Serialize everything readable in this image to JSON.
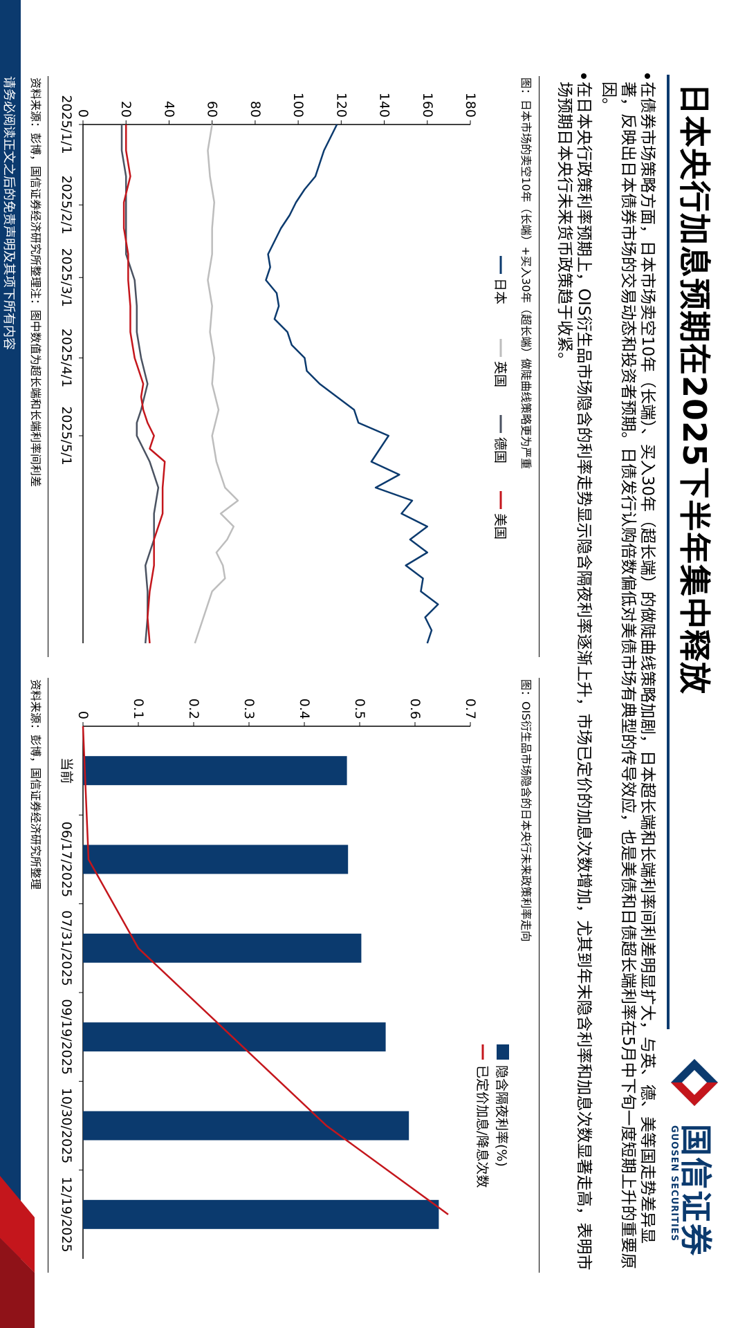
{
  "title": "日本央行加息预期在2025下半年集中释放",
  "bullets": [
    "在债券市场策略方面，日本市场卖空10年（长端）、买入30年（超长端）的做陡曲线策略加剧，日本超长端和长端利率间利差明显扩大，与英、德、美等国走势差异显著，反映出日本债券市场的交易动态和投资者预期。日债发行认购倍数偏低对美债市场有典型的传导效应，也是美债和日债超长端利率在5月中下旬一度短期上升的重要原因。",
    "在日本央行政策利率预期上，OIS衍生品市场隐含的利率走势显示隐含隔夜利率逐渐上升，市场已定价的加息次数增加，尤其到年末隐含利率和加息次数显著走高，表明市场预期日本央行未来货币政策趋于收紧。"
  ],
  "logo": {
    "cn": "国信证券",
    "en": "GUOSEN SECURITIES"
  },
  "disclaimer": "请务必阅读正文之后的免责声明及其项下所有内容",
  "colors": {
    "navy": "#0b3a6e",
    "red": "#c4161c",
    "grey": "#bdbdbd",
    "slate": "#4a5261"
  },
  "chart_data": [
    {
      "type": "line",
      "caption": "图：日本市场的卖空10年（长端）+买入30年（超长端）做陡曲线策略更为严重",
      "source": "资料来源：彭博，国信证券经济研究所整理注：图中数值为超长端和长端利率间利差",
      "x_ticks": [
        "2025/1/1",
        "2025/2/1",
        "2025/3/1",
        "2025/4/1",
        "2025/5/1"
      ],
      "y_ticks": [
        "0",
        "20",
        "40",
        "60",
        "80",
        "100",
        "120",
        "140",
        "160",
        "180"
      ],
      "ylim": [
        0,
        180
      ],
      "legend_position": "top",
      "series": [
        {
          "name": "日本",
          "color": "#0b3a6e",
          "values": [
            [
              0,
              118
            ],
            [
              5,
              115
            ],
            [
              10,
              112
            ],
            [
              15,
              110
            ],
            [
              20,
              108
            ],
            [
              25,
              103
            ],
            [
              30,
              99
            ],
            [
              35,
              96
            ],
            [
              40,
              92
            ],
            [
              45,
              89
            ],
            [
              50,
              86
            ],
            [
              55,
              87
            ],
            [
              60,
              85
            ],
            [
              65,
              90
            ],
            [
              70,
              91
            ],
            [
              75,
              89
            ],
            [
              80,
              95
            ],
            [
              85,
              97
            ],
            [
              90,
              103
            ],
            [
              95,
              104
            ],
            [
              100,
              110
            ],
            [
              105,
              118
            ],
            [
              110,
              126
            ],
            [
              115,
              128
            ],
            [
              120,
              142
            ],
            [
              125,
              138
            ],
            [
              130,
              134
            ],
            [
              135,
              147
            ],
            [
              140,
              136
            ],
            [
              145,
              153
            ],
            [
              150,
              148
            ],
            [
              155,
              160
            ],
            [
              160,
              152
            ],
            [
              165,
              160
            ],
            [
              170,
              150
            ],
            [
              175,
              158
            ],
            [
              180,
              157
            ],
            [
              185,
              165
            ],
            [
              190,
              159
            ],
            [
              195,
              162
            ],
            [
              200,
              160
            ]
          ]
        },
        {
          "name": "英国",
          "color": "#bdbdbd",
          "values": [
            [
              0,
              60
            ],
            [
              10,
              58
            ],
            [
              20,
              59
            ],
            [
              30,
              61
            ],
            [
              40,
              60
            ],
            [
              50,
              60
            ],
            [
              60,
              58
            ],
            [
              70,
              60
            ],
            [
              80,
              59
            ],
            [
              90,
              61
            ],
            [
              100,
              60
            ],
            [
              110,
              63
            ],
            [
              120,
              60
            ],
            [
              130,
              62
            ],
            [
              140,
              66
            ],
            [
              145,
              72
            ],
            [
              150,
              64
            ],
            [
              155,
              70
            ],
            [
              160,
              67
            ],
            [
              165,
              62
            ],
            [
              170,
              65
            ],
            [
              175,
              66
            ],
            [
              180,
              60
            ],
            [
              190,
              56
            ],
            [
              200,
              52
            ]
          ]
        },
        {
          "name": "德国",
          "color": "#4a5261",
          "values": [
            [
              0,
              18
            ],
            [
              10,
              18
            ],
            [
              20,
              20
            ],
            [
              30,
              20
            ],
            [
              40,
              20
            ],
            [
              50,
              20
            ],
            [
              60,
              24
            ],
            [
              70,
              25
            ],
            [
              80,
              25
            ],
            [
              90,
              27
            ],
            [
              100,
              30
            ],
            [
              110,
              27
            ],
            [
              115,
              25
            ],
            [
              120,
              25
            ],
            [
              130,
              31
            ],
            [
              140,
              35
            ],
            [
              150,
              33
            ],
            [
              160,
              33
            ],
            [
              170,
              29
            ],
            [
              180,
              30
            ],
            [
              190,
              30
            ],
            [
              200,
              29
            ]
          ]
        },
        {
          "name": "美国",
          "color": "#c4161c",
          "values": [
            [
              0,
              20
            ],
            [
              10,
              20
            ],
            [
              20,
              22
            ],
            [
              30,
              19
            ],
            [
              40,
              19
            ],
            [
              50,
              21
            ],
            [
              60,
              21
            ],
            [
              70,
              22
            ],
            [
              80,
              22
            ],
            [
              90,
              24
            ],
            [
              100,
              28
            ],
            [
              105,
              27
            ],
            [
              110,
              28
            ],
            [
              115,
              30
            ],
            [
              120,
              33
            ],
            [
              125,
              31
            ],
            [
              130,
              38
            ],
            [
              140,
              37
            ],
            [
              150,
              37
            ],
            [
              160,
              33
            ],
            [
              170,
              33
            ],
            [
              180,
              31
            ],
            [
              190,
              30
            ],
            [
              200,
              31
            ]
          ]
        }
      ]
    },
    {
      "type": "bar",
      "caption": "图：OIS衍生品市场隐含的日本央行未来政策利率走向",
      "source": "资料来源：彭博，国信证券经济研究所整理",
      "categories": [
        "当前",
        "06/17/2025",
        "07/31/2025",
        "09/19/2025",
        "10/30/2025",
        "12/19/2025"
      ],
      "y_ticks": [
        "0",
        "0.1",
        "0.2",
        "0.3",
        "0.4",
        "0.5",
        "0.6",
        "0.7"
      ],
      "ylim": [
        0,
        0.7
      ],
      "legend_position": "top-right",
      "series": [
        {
          "name": "隐含隔夜利率(%)",
          "color": "#0b3a6e",
          "values": [
            0.477,
            0.479,
            0.503,
            0.547,
            0.589,
            0.643
          ]
        },
        {
          "name": "已定价加息/降息次数",
          "color": "#c4161c",
          "values": [
            0.0,
            0.01,
            0.1,
            0.27,
            0.44,
            0.66
          ]
        }
      ]
    }
  ]
}
